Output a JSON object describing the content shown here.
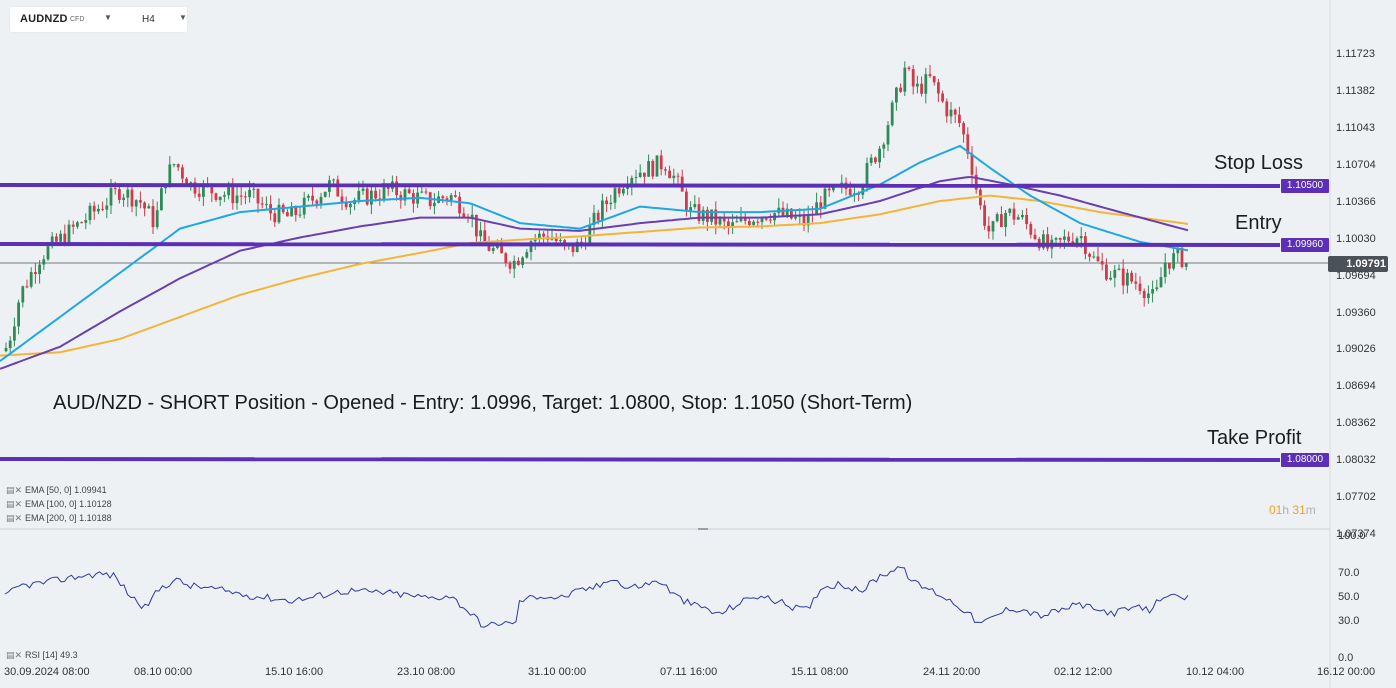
{
  "toolbar": {
    "symbol": "AUDNZD",
    "symbol_type": "CFD",
    "timeframe": "H4"
  },
  "headline": "AUD/NZD - SHORT Position - Opened - Entry: 1.0996, Target: 1.0800, Stop: 1.1050 (Short-Term)",
  "levels": {
    "stop_loss": {
      "label": "Stop Loss",
      "tag": "1.10500",
      "price": 1.105
    },
    "entry": {
      "label": "Entry",
      "tag": "1.09960",
      "price": 1.0996
    },
    "take_profit": {
      "label": "Take Profit",
      "tag": "1.08000",
      "price": 1.08
    }
  },
  "current_price": "1.09791",
  "legend": {
    "ema50": "EMA [50, 0] 1.09941",
    "ema100": "EMA [100, 0] 1.10128",
    "ema200": "EMA [200, 0] 1.10188",
    "rsi": "RSI [14] 49.3"
  },
  "timer": {
    "hours": "01",
    "h_unit": "h",
    "minutes": "31",
    "m_unit": "m"
  },
  "colors": {
    "level_line": "#5b2fb6",
    "bull_candle": "#2e8b57",
    "bear_candle": "#d13a4a",
    "ema50": "#1ea7e4",
    "ema100": "#6a3fb0",
    "ema200": "#f4b43a",
    "rsi_line": "#2b3a9e"
  },
  "chart_data": {
    "type": "candlestick",
    "y_ticks": [
      "1.11723",
      "1.11382",
      "1.11043",
      "1.10704",
      "1.10366",
      "1.10030",
      "1.09694",
      "1.09360",
      "1.09026",
      "1.08694",
      "1.08362",
      "1.08032",
      "1.07702",
      "1.07374"
    ],
    "ylim": [
      1.0737,
      1.1172
    ],
    "x_ticks": [
      "30.09.2024  08:00",
      "08.10  00:00",
      "15.10  16:00",
      "23.10  08:00",
      "31.10  00:00",
      "07.11  16:00",
      "15.11  08:00",
      "24.11  20:00",
      "02.12  12:00",
      "10.12  04:00",
      "16.12  00:00"
    ],
    "price_path": [
      [
        0,
        1.0898
      ],
      [
        8,
        1.091
      ],
      [
        20,
        1.0955
      ],
      [
        40,
        1.099
      ],
      [
        60,
        1.1005
      ],
      [
        80,
        1.102
      ],
      [
        100,
        1.1035
      ],
      [
        120,
        1.105
      ],
      [
        140,
        1.104
      ],
      [
        155,
        1.102
      ],
      [
        165,
        1.106
      ],
      [
        175,
        1.1075
      ],
      [
        190,
        1.1055
      ],
      [
        210,
        1.105
      ],
      [
        230,
        1.1045
      ],
      [
        250,
        1.1045
      ],
      [
        270,
        1.103
      ],
      [
        290,
        1.1025
      ],
      [
        310,
        1.104
      ],
      [
        330,
        1.1055
      ],
      [
        350,
        1.104
      ],
      [
        370,
        1.1045
      ],
      [
        390,
        1.105
      ],
      [
        410,
        1.1045
      ],
      [
        430,
        1.104
      ],
      [
        450,
        1.1045
      ],
      [
        470,
        1.103
      ],
      [
        480,
        1.1005
      ],
      [
        500,
        1.099
      ],
      [
        515,
        1.0985
      ],
      [
        530,
        1.1005
      ],
      [
        550,
        1.101
      ],
      [
        565,
        1.0995
      ],
      [
        580,
        1.1
      ],
      [
        600,
        1.103
      ],
      [
        615,
        1.105
      ],
      [
        630,
        1.1065
      ],
      [
        650,
        1.107
      ],
      [
        665,
        1.1075
      ],
      [
        675,
        1.106
      ],
      [
        690,
        1.103
      ],
      [
        710,
        1.1025
      ],
      [
        730,
        1.1015
      ],
      [
        750,
        1.1025
      ],
      [
        770,
        1.103
      ],
      [
        790,
        1.1025
      ],
      [
        806,
        1.102
      ],
      [
        820,
        1.104
      ],
      [
        840,
        1.105
      ],
      [
        860,
        1.1055
      ],
      [
        880,
        1.109
      ],
      [
        895,
        1.113
      ],
      [
        905,
        1.116
      ],
      [
        915,
        1.114
      ],
      [
        930,
        1.115
      ],
      [
        945,
        1.1125
      ],
      [
        960,
        1.111
      ],
      [
        970,
        1.108
      ],
      [
        980,
        1.1035
      ],
      [
        990,
        1.101
      ],
      [
        1005,
        1.103
      ],
      [
        1020,
        1.1025
      ],
      [
        1035,
        1.101
      ],
      [
        1050,
        1.0995
      ],
      [
        1065,
        1.1005
      ],
      [
        1080,
        1.101
      ],
      [
        1095,
        1.0985
      ],
      [
        1110,
        1.0975
      ],
      [
        1125,
        1.097
      ],
      [
        1140,
        1.0965
      ],
      [
        1155,
        1.095
      ],
      [
        1165,
        1.0985
      ],
      [
        1180,
        1.099
      ],
      [
        1190,
        1.098
      ]
    ],
    "ema50_path": [
      [
        0,
        1.0895
      ],
      [
        60,
        1.0935
      ],
      [
        120,
        1.0975
      ],
      [
        180,
        1.1015
      ],
      [
        240,
        1.103
      ],
      [
        300,
        1.1035
      ],
      [
        360,
        1.104
      ],
      [
        420,
        1.1043
      ],
      [
        470,
        1.1038
      ],
      [
        520,
        1.102
      ],
      [
        580,
        1.1015
      ],
      [
        640,
        1.1035
      ],
      [
        700,
        1.103
      ],
      [
        760,
        1.103
      ],
      [
        820,
        1.1033
      ],
      [
        880,
        1.1055
      ],
      [
        920,
        1.1075
      ],
      [
        960,
        1.109
      ],
      [
        990,
        1.107
      ],
      [
        1030,
        1.1045
      ],
      [
        1080,
        1.102
      ],
      [
        1140,
        1.1003
      ],
      [
        1190,
        1.0995
      ]
    ],
    "ema100_path": [
      [
        0,
        1.0888
      ],
      [
        60,
        1.0908
      ],
      [
        120,
        1.094
      ],
      [
        180,
        1.097
      ],
      [
        240,
        1.0995
      ],
      [
        300,
        1.1007
      ],
      [
        360,
        1.1017
      ],
      [
        420,
        1.1025
      ],
      [
        470,
        1.1025
      ],
      [
        520,
        1.1015
      ],
      [
        580,
        1.1013
      ],
      [
        640,
        1.102
      ],
      [
        700,
        1.1025
      ],
      [
        760,
        1.1025
      ],
      [
        820,
        1.1028
      ],
      [
        880,
        1.104
      ],
      [
        940,
        1.1058
      ],
      [
        970,
        1.1062
      ],
      [
        1010,
        1.1055
      ],
      [
        1060,
        1.1045
      ],
      [
        1120,
        1.103
      ],
      [
        1190,
        1.1013
      ]
    ],
    "ema200_path": [
      [
        0,
        1.09
      ],
      [
        60,
        1.0903
      ],
      [
        120,
        1.0915
      ],
      [
        180,
        1.0935
      ],
      [
        240,
        1.0955
      ],
      [
        300,
        1.097
      ],
      [
        360,
        1.0983
      ],
      [
        420,
        1.0993
      ],
      [
        470,
        1.1002
      ],
      [
        520,
        1.1005
      ],
      [
        580,
        1.1008
      ],
      [
        640,
        1.1012
      ],
      [
        700,
        1.1016
      ],
      [
        760,
        1.1017
      ],
      [
        820,
        1.102
      ],
      [
        880,
        1.1028
      ],
      [
        940,
        1.104
      ],
      [
        990,
        1.1045
      ],
      [
        1040,
        1.104
      ],
      [
        1100,
        1.103
      ],
      [
        1190,
        1.1019
      ]
    ],
    "rsi_ticks": [
      "100.0",
      "70.0",
      "50.0",
      "30.0",
      "0.0"
    ],
    "rsi_path": [
      [
        0,
        48
      ],
      [
        20,
        60
      ],
      [
        40,
        62
      ],
      [
        60,
        65
      ],
      [
        80,
        68
      ],
      [
        100,
        70
      ],
      [
        115,
        68
      ],
      [
        130,
        52
      ],
      [
        145,
        42
      ],
      [
        160,
        58
      ],
      [
        175,
        65
      ],
      [
        190,
        60
      ],
      [
        210,
        58
      ],
      [
        230,
        55
      ],
      [
        250,
        52
      ],
      [
        270,
        50
      ],
      [
        290,
        48
      ],
      [
        310,
        50
      ],
      [
        330,
        54
      ],
      [
        350,
        56
      ],
      [
        370,
        55
      ],
      [
        390,
        54
      ],
      [
        410,
        52
      ],
      [
        430,
        50
      ],
      [
        450,
        52
      ],
      [
        470,
        38
      ],
      [
        485,
        26
      ],
      [
        500,
        30
      ],
      [
        515,
        28
      ],
      [
        520,
        48
      ],
      [
        540,
        52
      ],
      [
        560,
        50
      ],
      [
        580,
        56
      ],
      [
        600,
        60
      ],
      [
        612,
        68
      ],
      [
        625,
        58
      ],
      [
        640,
        60
      ],
      [
        660,
        64
      ],
      [
        675,
        52
      ],
      [
        690,
        45
      ],
      [
        705,
        42
      ],
      [
        718,
        36
      ],
      [
        735,
        44
      ],
      [
        755,
        52
      ],
      [
        775,
        48
      ],
      [
        795,
        42
      ],
      [
        808,
        40
      ],
      [
        820,
        58
      ],
      [
        840,
        62
      ],
      [
        860,
        55
      ],
      [
        880,
        68
      ],
      [
        900,
        76
      ],
      [
        915,
        62
      ],
      [
        935,
        55
      ],
      [
        950,
        48
      ],
      [
        965,
        40
      ],
      [
        980,
        28
      ],
      [
        995,
        35
      ],
      [
        1010,
        42
      ],
      [
        1025,
        40
      ],
      [
        1040,
        35
      ],
      [
        1060,
        40
      ],
      [
        1080,
        45
      ],
      [
        1095,
        40
      ],
      [
        1115,
        38
      ],
      [
        1135,
        42
      ],
      [
        1150,
        40
      ],
      [
        1165,
        54
      ],
      [
        1180,
        48
      ],
      [
        1190,
        50
      ]
    ]
  }
}
